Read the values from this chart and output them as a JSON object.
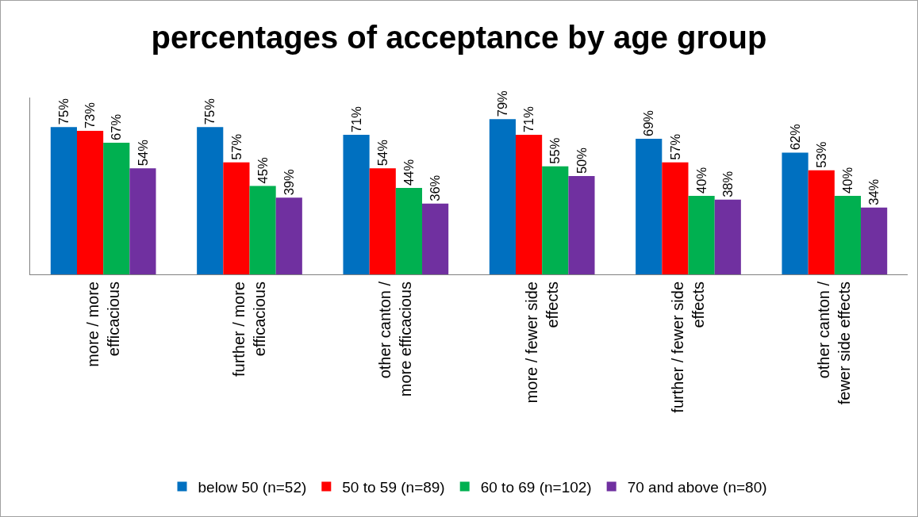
{
  "chart_data": {
    "type": "bar",
    "title": "percentages of acceptance by age group",
    "categories": [
      "more / more\nefficacious",
      "further / more\nefficacious",
      "other canton /\nmore efficacious",
      "more / fewer side\neffects",
      "further / fewer side\neffects",
      "other canton /\nfewer side effects"
    ],
    "series": [
      {
        "name": "below 50 (n=52)",
        "color": "#0070c0",
        "values": [
          75,
          75,
          71,
          79,
          69,
          62
        ],
        "value_labels": [
          "75%",
          "75%",
          "71%",
          "79%",
          "69%",
          "62%"
        ]
      },
      {
        "name": "50 to 59 (n=89)",
        "color": "#ff0000",
        "values": [
          73,
          57,
          54,
          71,
          57,
          53
        ],
        "value_labels": [
          "73%",
          "57%",
          "54%",
          "71%",
          "57%",
          "53%"
        ]
      },
      {
        "name": "60 to 69 (n=102)",
        "color": "#00b050",
        "values": [
          67,
          45,
          44,
          55,
          40,
          40
        ],
        "value_labels": [
          "67%",
          "45%",
          "44%",
          "55%",
          "40%",
          "40%"
        ]
      },
      {
        "name": "70 and above (n=80)",
        "color": "#7030a0",
        "values": [
          54,
          39,
          36,
          50,
          38,
          34
        ],
        "value_labels": [
          "54%",
          "39%",
          "36%",
          "50%",
          "38%",
          "34%"
        ]
      }
    ],
    "ylim": [
      0,
      90
    ],
    "grid": false,
    "legend": "bottom",
    "tick_labels": "x"
  }
}
